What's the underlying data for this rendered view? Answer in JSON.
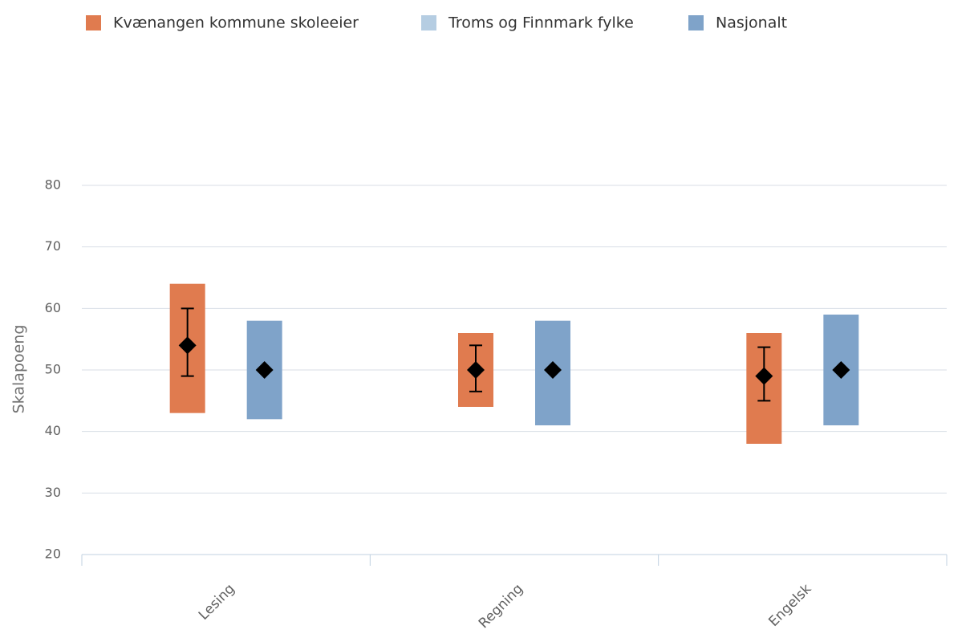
{
  "chart_data": {
    "type": "columnrange",
    "y_axis_label": "Skalapoeng",
    "categories": [
      "Lesing",
      "Regning",
      "Engelsk"
    ],
    "ylim": [
      20,
      80
    ],
    "yticks": [
      20,
      30,
      40,
      50,
      60,
      70,
      80
    ],
    "grid": true,
    "legend": "top-left",
    "series": [
      {
        "name": "Kvænangen kommune skoleeier",
        "color": "#e07b4f",
        "low": [
          43,
          44,
          38
        ],
        "high": [
          64,
          56,
          56
        ],
        "values": [
          54,
          50,
          49
        ],
        "error_low": [
          49,
          46.5,
          45
        ],
        "error_high": [
          60,
          54,
          53.7
        ]
      },
      {
        "name": "Troms og Finnmark fylke",
        "color": "#b5cde2",
        "low": [
          null,
          null,
          null
        ],
        "high": [
          null,
          null,
          null
        ],
        "values": [
          null,
          null,
          null
        ]
      },
      {
        "name": "Nasjonalt",
        "color": "#7fa3c9",
        "low": [
          42,
          41,
          41
        ],
        "high": [
          58,
          58,
          59
        ],
        "values": [
          50,
          50,
          50
        ]
      }
    ]
  }
}
